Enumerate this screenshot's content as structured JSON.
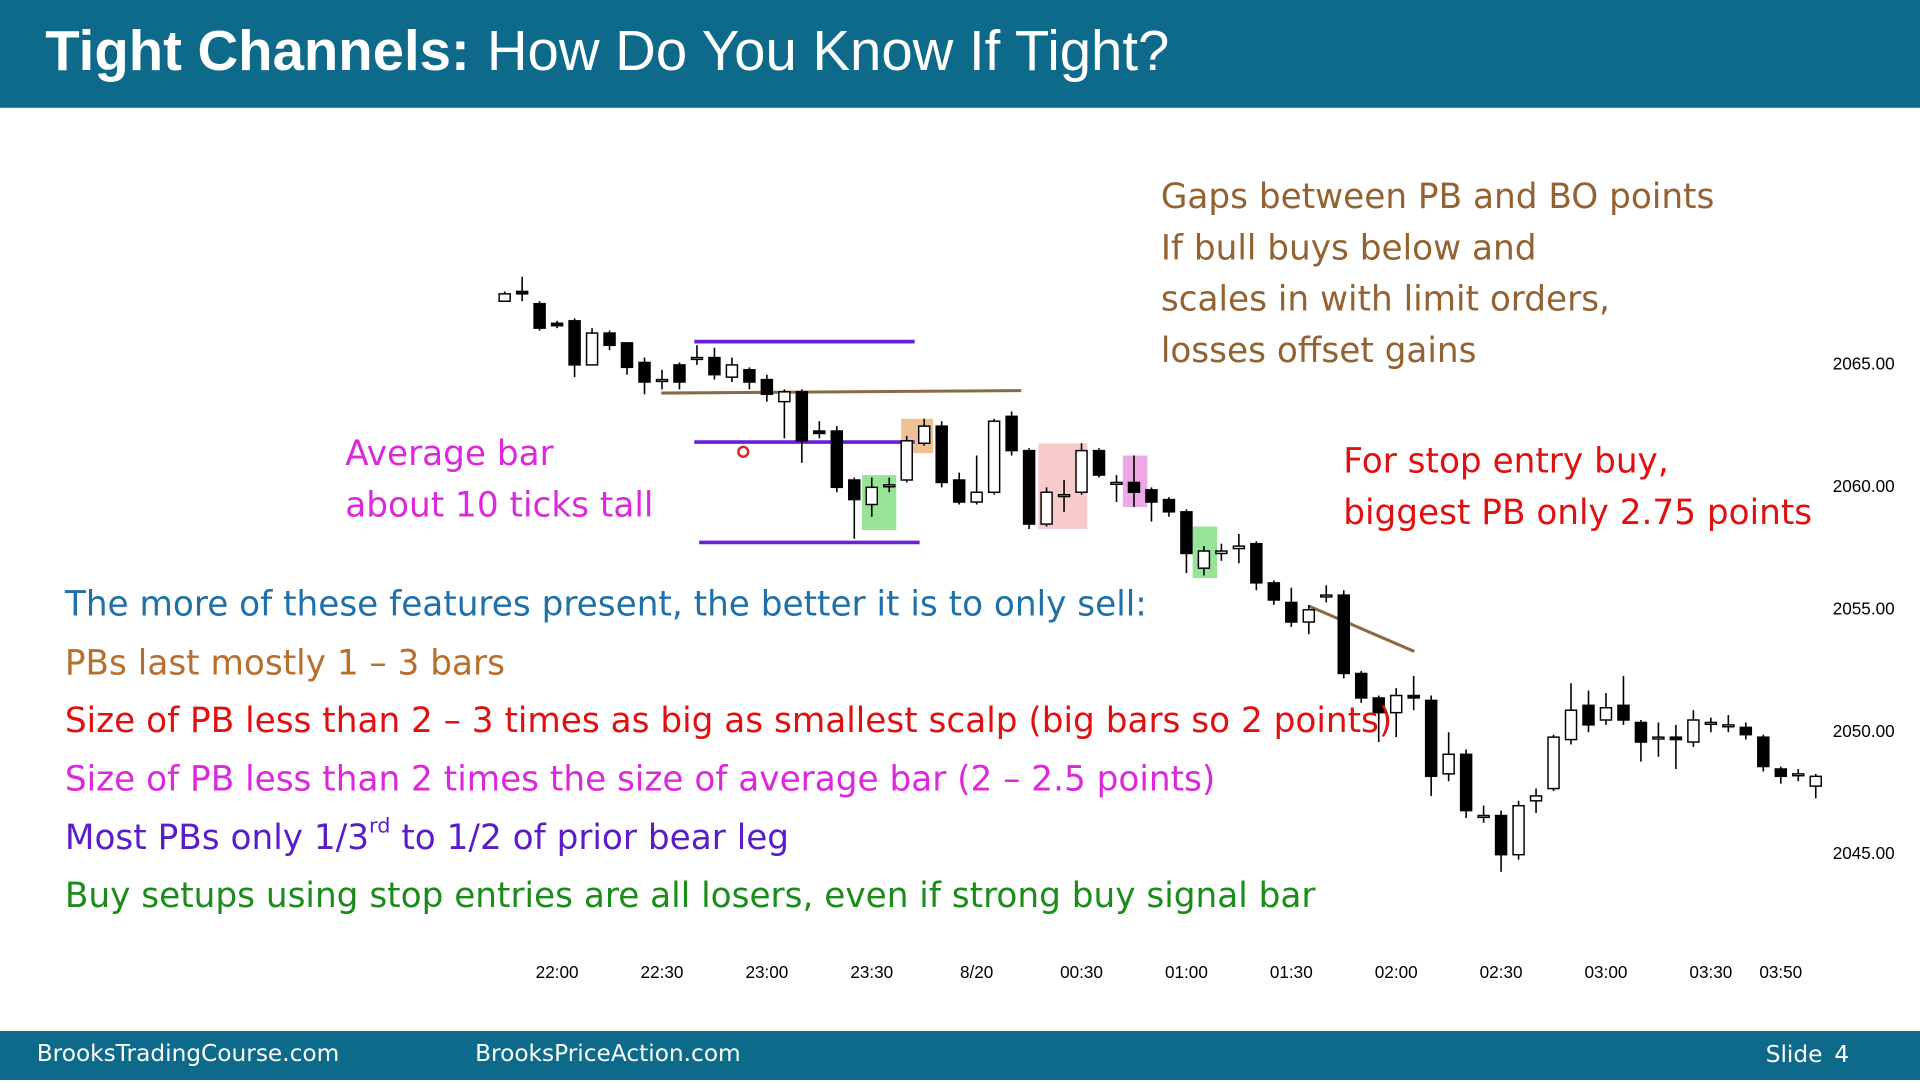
{
  "header": {
    "title_bold": "Tight Channels:",
    "title_rest": "How Do You Know If Tight?"
  },
  "annotations": {
    "gaps": [
      "Gaps between PB and BO points",
      "If bull buys below and",
      "scales in with limit orders,",
      "losses offset gains"
    ],
    "average_bar": [
      "Average bar",
      "about 10 ticks tall"
    ],
    "stop_entry": [
      "For stop entry buy,",
      "biggest PB only 2.75 points"
    ]
  },
  "features": {
    "intro": "The more of these features present, the better it is to only sell:",
    "items": [
      "PBs last mostly 1 – 3 bars",
      "Size of PB less than 2 – 3 times as big as smallest scalp (big bars so 2 points)",
      "Size of PB less than 2 times the size of average bar (2 – 2.5 points)",
      [
        "Most PBs only 1/3",
        "rd",
        " to 1/2 of prior bear leg"
      ],
      "Buy setups using stop entries are all losers, even if strong buy signal bar"
    ]
  },
  "footer": {
    "left": "BrooksTradingCourse.com",
    "middle": "BrooksPriceAction.com",
    "slide": "Slide",
    "number": "4"
  },
  "chart_data": {
    "type": "candlestick",
    "up_color": "#ffffff",
    "down_color": "#000000",
    "grid": false,
    "x": [
      null,
      null,
      null,
      "22:00",
      null,
      null,
      null,
      null,
      null,
      "22:30",
      null,
      null,
      null,
      null,
      null,
      "23:00",
      null,
      null,
      null,
      null,
      null,
      "23:30",
      null,
      null,
      null,
      null,
      null,
      "8/20",
      null,
      null,
      null,
      null,
      null,
      "00:30",
      null,
      null,
      null,
      null,
      null,
      "01:00",
      null,
      null,
      null,
      null,
      null,
      "01:30",
      null,
      null,
      null,
      null,
      null,
      "02:00",
      null,
      null,
      null,
      null,
      null,
      "02:30",
      null,
      null,
      null,
      null,
      null,
      "03:00",
      null,
      null,
      null,
      null,
      null,
      "03:30",
      null,
      null,
      null,
      "03:50",
      null,
      null
    ],
    "open": [
      2067.6,
      2068.0,
      2067.5,
      2066.7,
      2066.8,
      2065.0,
      2066.3,
      2065.9,
      2065.1,
      2064.4,
      2065.0,
      2065.3,
      2065.3,
      2064.5,
      2064.8,
      2064.4,
      2063.5,
      2063.9,
      2062.3,
      2062.3,
      2060.3,
      2059.3,
      2060.1,
      2060.3,
      2061.8,
      2062.5,
      2060.3,
      2059.4,
      2059.8,
      2062.9,
      2061.5,
      2058.5,
      2059.7,
      2059.8,
      2061.5,
      2060.2,
      2060.2,
      2059.9,
      2059.5,
      2059.0,
      2056.7,
      2057.3,
      2057.5,
      2057.7,
      2056.1,
      2055.3,
      2054.5,
      2055.6,
      2055.6,
      2052.4,
      2051.4,
      2050.8,
      2051.5,
      2051.3,
      2048.3,
      2049.1,
      2046.6,
      2046.6,
      2045.0,
      2047.2,
      2047.7,
      2049.7,
      2051.1,
      2050.5,
      2051.1,
      2050.4,
      2049.8,
      2049.8,
      2049.6,
      2050.4,
      2050.3,
      2050.2,
      2049.8,
      2048.5,
      2048.3,
      2047.8
    ],
    "high": [
      2068.0,
      2068.6,
      2067.6,
      2066.8,
      2066.9,
      2066.5,
      2066.4,
      2065.9,
      2065.3,
      2064.8,
      2065.1,
      2065.8,
      2065.7,
      2065.3,
      2064.9,
      2064.6,
      2064.0,
      2064.0,
      2062.7,
      2062.5,
      2060.4,
      2060.4,
      2060.4,
      2062.1,
      2062.8,
      2062.7,
      2060.6,
      2061.3,
      2062.8,
      2063.1,
      2061.6,
      2060.0,
      2060.3,
      2061.8,
      2061.6,
      2060.5,
      2061.3,
      2060.0,
      2059.6,
      2059.1,
      2057.6,
      2057.7,
      2058.1,
      2057.8,
      2056.2,
      2055.9,
      2055.2,
      2056.0,
      2055.8,
      2052.5,
      2051.5,
      2051.8,
      2052.3,
      2051.5,
      2050.0,
      2049.3,
      2047.0,
      2046.8,
      2047.2,
      2047.7,
      2049.9,
      2052.0,
      2051.7,
      2051.6,
      2052.3,
      2050.5,
      2050.4,
      2050.3,
      2050.9,
      2050.6,
      2050.7,
      2050.4,
      2049.9,
      2048.6,
      2048.5,
      2048.3
    ],
    "low": [
      2067.6,
      2067.6,
      2066.4,
      2066.5,
      2064.5,
      2065.0,
      2065.6,
      2064.6,
      2063.8,
      2064.0,
      2064.0,
      2065.0,
      2064.4,
      2064.3,
      2064.0,
      2063.5,
      2062.0,
      2061.0,
      2062.0,
      2059.8,
      2057.9,
      2058.8,
      2059.8,
      2060.2,
      2061.7,
      2060.0,
      2059.3,
      2059.3,
      2059.7,
      2061.3,
      2058.3,
      2058.4,
      2059.0,
      2059.7,
      2060.4,
      2059.4,
      2059.2,
      2058.6,
      2058.8,
      2056.5,
      2056.4,
      2057.0,
      2056.9,
      2055.8,
      2055.2,
      2054.3,
      2054.0,
      2055.3,
      2052.2,
      2051.2,
      2049.6,
      2049.8,
      2050.9,
      2047.4,
      2048.0,
      2046.5,
      2046.3,
      2044.3,
      2044.8,
      2046.7,
      2047.6,
      2049.5,
      2050.0,
      2050.3,
      2050.3,
      2048.8,
      2049.0,
      2048.5,
      2049.4,
      2050.0,
      2050.0,
      2049.7,
      2048.4,
      2047.9,
      2048.0,
      2047.3
    ],
    "close": [
      2067.9,
      2067.9,
      2066.5,
      2066.6,
      2065.0,
      2066.3,
      2065.8,
      2064.9,
      2064.3,
      2064.4,
      2064.3,
      2065.3,
      2064.6,
      2065.0,
      2064.3,
      2063.8,
      2063.9,
      2061.9,
      2062.2,
      2060.0,
      2059.5,
      2060.0,
      2060.1,
      2061.9,
      2062.5,
      2060.2,
      2059.4,
      2059.8,
      2062.7,
      2061.5,
      2058.5,
      2059.8,
      2059.7,
      2061.5,
      2060.5,
      2060.2,
      2059.8,
      2059.4,
      2059.0,
      2057.3,
      2057.4,
      2057.4,
      2057.6,
      2056.1,
      2055.4,
      2054.5,
      2055.0,
      2055.6,
      2052.4,
      2051.4,
      2050.8,
      2051.5,
      2051.4,
      2048.2,
      2049.1,
      2046.8,
      2046.6,
      2045.0,
      2047.0,
      2047.4,
      2049.8,
      2050.9,
      2050.3,
      2051.0,
      2050.5,
      2049.6,
      2049.8,
      2049.7,
      2050.5,
      2050.4,
      2050.3,
      2049.9,
      2048.6,
      2048.2,
      2048.3,
      2048.2
    ],
    "ylim": [
      2042,
      2073
    ],
    "yticks": [
      {
        "value": 2045,
        "label": "2045.00"
      },
      {
        "value": 2050,
        "label": "2050.00"
      },
      {
        "value": 2055,
        "label": "2055.00"
      },
      {
        "value": 2060,
        "label": "2060.00"
      },
      {
        "value": 2065,
        "label": "2065.00"
      }
    ]
  }
}
